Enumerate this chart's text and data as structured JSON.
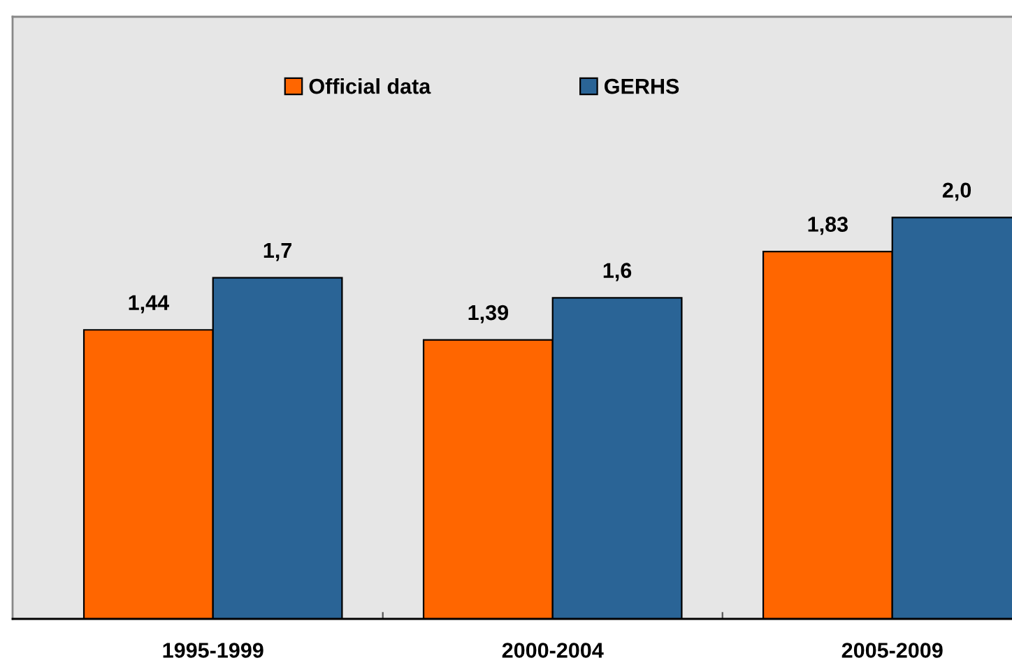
{
  "chart_data": {
    "type": "bar",
    "categories": [
      "1995-1999",
      "2000-2004",
      "2005-2009"
    ],
    "series": [
      {
        "name": "Official data",
        "color": "#ff6600",
        "values": [
          1.44,
          1.39,
          1.83
        ],
        "value_labels": [
          "1,44",
          "1,39",
          "1,83"
        ]
      },
      {
        "name": "GERHS",
        "color": "#2a6496",
        "values": [
          1.7,
          1.6,
          2.0
        ],
        "value_labels": [
          "1,7",
          "1,6",
          "2,0"
        ]
      }
    ],
    "legend": "top",
    "grid": false,
    "tick_labels": "x"
  }
}
